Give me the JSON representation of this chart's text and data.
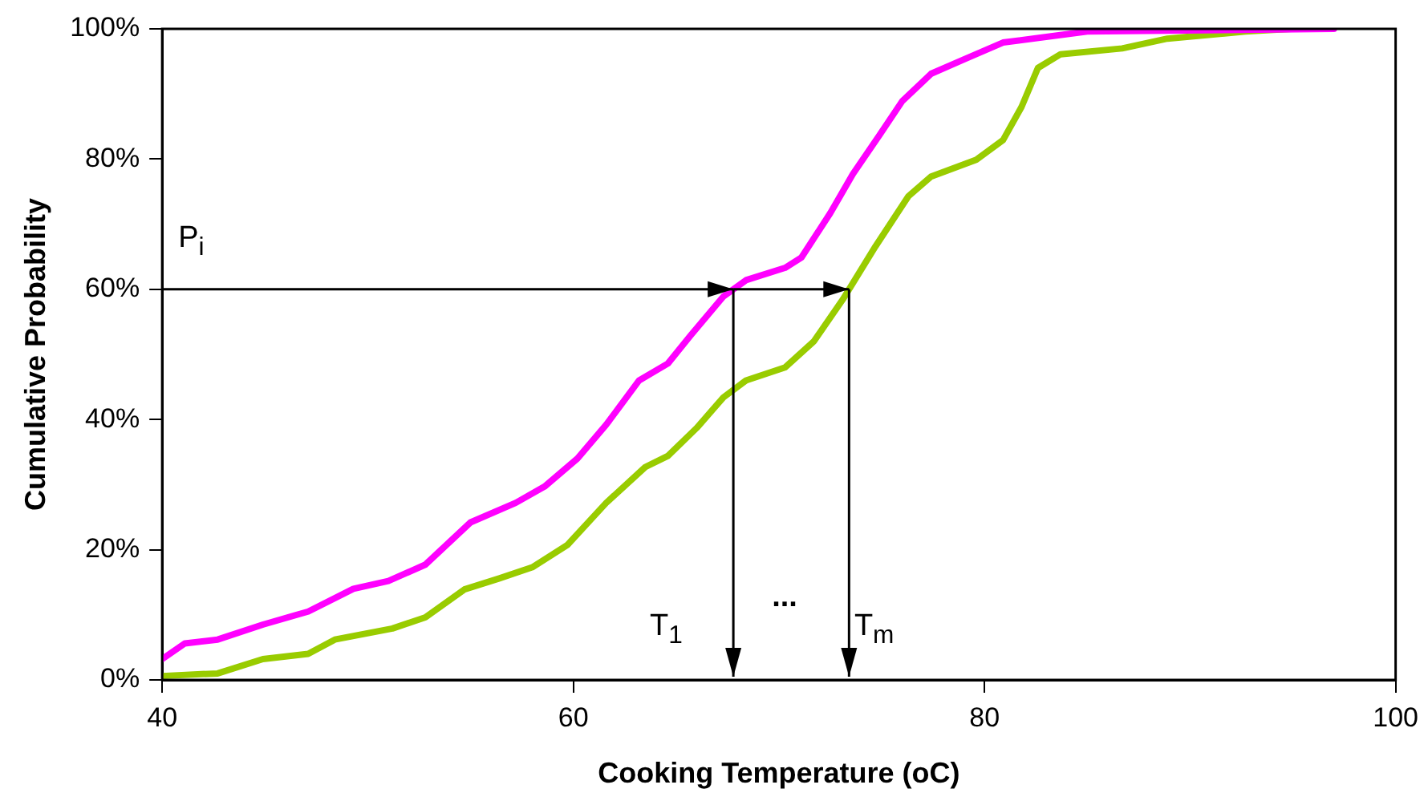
{
  "chart_data": {
    "type": "line",
    "xlabel": "Cooking Temperature (oC)",
    "ylabel": "Cumulative Probability",
    "xlim": [
      40,
      100
    ],
    "xticks": [
      40,
      60,
      80,
      100
    ],
    "ylim": [
      0,
      100
    ],
    "yticks": [
      {
        "value": 0,
        "label": "0%"
      },
      {
        "value": 20,
        "label": "20%"
      },
      {
        "value": 40,
        "label": "40%"
      },
      {
        "value": 60,
        "label": "60%"
      },
      {
        "value": 80,
        "label": "80%"
      },
      {
        "value": 100,
        "label": "100%"
      }
    ],
    "grid": false,
    "legend": false,
    "marker": "none",
    "line_style": "solid",
    "series": [
      {
        "color": "#ff00ff",
        "x": [
          40,
          41.1,
          42.7,
          44.9,
          47.1,
          49.3,
          51,
          52.8,
          55,
          57.2,
          58.6,
          60.2,
          61.6,
          63.2,
          64.6,
          65.7,
          67.3,
          68.4,
          70.3,
          71.1,
          72.5,
          73.6,
          74.9,
          76,
          77.4,
          79,
          80.9,
          85,
          97
        ],
        "values": [
          3.2,
          5.6,
          6.2,
          8.5,
          10.5,
          14,
          15.2,
          17.7,
          24.2,
          27.2,
          29.7,
          34,
          39.2,
          46,
          48.6,
          52.9,
          58.9,
          61.4,
          63.3,
          64.9,
          71.7,
          77.7,
          83.7,
          88.9,
          93.1,
          95.3,
          97.9,
          99.6,
          100
        ]
      },
      {
        "color": "#99cc00",
        "x": [
          40,
          42.7,
          44.9,
          47.1,
          48.4,
          51.2,
          52.8,
          54.7,
          56.4,
          58,
          59.7,
          61.6,
          63.5,
          64.6,
          66,
          67.3,
          68.4,
          70.3,
          71.7,
          73.1,
          74.7,
          76.3,
          77.4,
          79.6,
          80.9,
          81.8,
          82.6,
          83.7,
          86.7,
          88.9,
          92.7,
          94.9
        ],
        "values": [
          0.6,
          1,
          3.2,
          4,
          6.2,
          7.9,
          9.6,
          13.9,
          15.6,
          17.3,
          20.7,
          27.2,
          32.7,
          34.4,
          38.7,
          43.4,
          46,
          48,
          52,
          58.4,
          66.6,
          74.3,
          77.3,
          79.9,
          82.9,
          88,
          94,
          96.1,
          97,
          98.5,
          99.6,
          100
        ]
      }
    ],
    "ref_lines": [
      {
        "axis": "y",
        "value": 60
      }
    ],
    "annotations": [
      {
        "text": "P$_{i}$",
        "x": 40,
        "y": 60
      },
      "T$_{1}$",
      "...",
      {
        "text": "T$_{m}$",
        "x": 73.2,
        "y": 60
      }
    ]
  }
}
